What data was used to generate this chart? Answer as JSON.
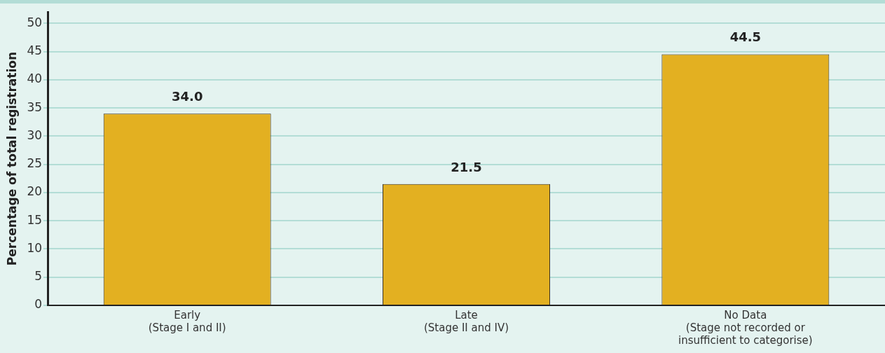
{
  "chart_data": {
    "type": "bar",
    "ylabel": "Percentage of total registration",
    "categories": [
      "Early\n(Stage I and II)",
      "Late\n(Stage II and IV)",
      "No Data\n(Stage not recorded or\ninsufficient to categorise)"
    ],
    "values": [
      34.0,
      21.5,
      44.5
    ],
    "value_labels": [
      "34.0",
      "21.5",
      "44.5"
    ],
    "color": "#e3b021",
    "ylim": [
      0,
      52
    ],
    "yticks": [
      0,
      5,
      10,
      15,
      20,
      25,
      30,
      35,
      40,
      45,
      50
    ],
    "grid": "y"
  }
}
